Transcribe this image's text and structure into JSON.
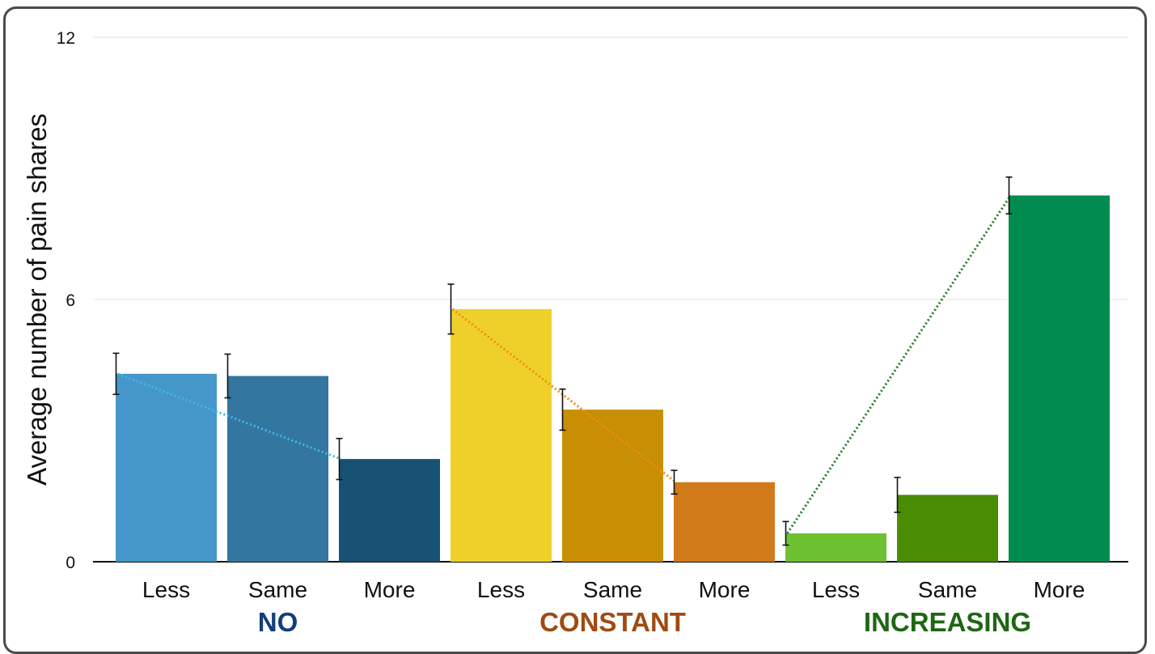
{
  "chart_data": {
    "type": "bar",
    "title": "",
    "xlabel": "",
    "ylabel": "Average number of pain shares",
    "ylim": [
      0,
      12
    ],
    "yticks": [
      "0",
      "6",
      "12"
    ],
    "grid": true,
    "groups": [
      {
        "name": "NO",
        "color": "#123f7a",
        "trend_color": "#3fb8ee",
        "bars": [
          {
            "category": "Less",
            "value": 4.3,
            "error": 0.47,
            "color": "#4697c9"
          },
          {
            "category": "Same",
            "value": 4.25,
            "error": 0.5,
            "color": "#33769f"
          },
          {
            "category": "More",
            "value": 2.35,
            "error": 0.47,
            "color": "#175275"
          }
        ]
      },
      {
        "name": "CONSTANT",
        "color": "#a14a12",
        "trend_color": "#f28a18",
        "bars": [
          {
            "category": "Less",
            "value": 5.78,
            "error": 0.57,
            "color": "#efd02a"
          },
          {
            "category": "Same",
            "value": 3.48,
            "error": 0.47,
            "color": "#c88e04"
          },
          {
            "category": "More",
            "value": 1.82,
            "error": 0.27,
            "color": "#d07a19"
          }
        ]
      },
      {
        "name": "INCREASING",
        "color": "#1f6614",
        "trend_color": "#1c7d23",
        "bars": [
          {
            "category": "Less",
            "value": 0.65,
            "error": 0.27,
            "color": "#6ec133"
          },
          {
            "category": "Same",
            "value": 1.53,
            "error": 0.4,
            "color": "#4a8c04"
          },
          {
            "category": "More",
            "value": 8.38,
            "error": 0.42,
            "color": "#008c50"
          }
        ]
      }
    ]
  }
}
